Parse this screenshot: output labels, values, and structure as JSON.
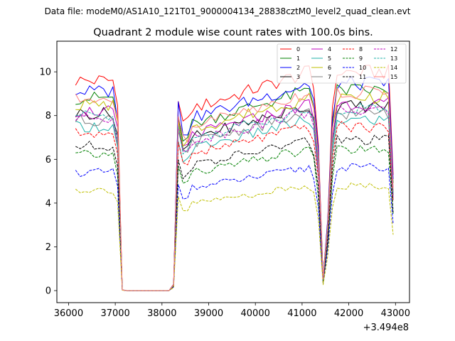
{
  "chart_data": {
    "type": "line",
    "suptitle": "Data file: modeM0/AS1A10_121T01_9000004134_28838cztM0_level2_quad_clean.evt",
    "title": "Quadrant 2 module wise count rates with 100.0s bins.",
    "xlabel": "",
    "ylabel": "",
    "x_offset_label": "+3.494e8",
    "xlim": [
      35750,
      43300
    ],
    "ylim": [
      -0.55,
      11.4
    ],
    "xticks": [
      36000,
      37000,
      38000,
      39000,
      40000,
      41000,
      42000,
      43000
    ],
    "xtick_labels": [
      "36000",
      "37000",
      "38000",
      "39000",
      "40000",
      "41000",
      "42000",
      "43000"
    ],
    "yticks": [
      0,
      2,
      4,
      6,
      8,
      10
    ],
    "ytick_labels": [
      "0",
      "2",
      "4",
      "6",
      "8",
      "10"
    ],
    "grid": false,
    "legend_position": "upper right",
    "legend_columns": 4,
    "x": [
      36150,
      36250,
      36350,
      36450,
      36550,
      36650,
      36750,
      36850,
      36950,
      37050,
      37150,
      37250,
      37350,
      37450,
      37550,
      37650,
      37750,
      37850,
      37950,
      38050,
      38150,
      38250,
      38350,
      38450,
      38550,
      38650,
      38750,
      38850,
      38950,
      39050,
      39150,
      39250,
      39350,
      39450,
      39550,
      39650,
      39750,
      39850,
      39950,
      40050,
      40150,
      40250,
      40350,
      40450,
      40550,
      40650,
      40750,
      40850,
      40950,
      41050,
      41150,
      41250,
      41350,
      41450,
      41550,
      41650,
      41750,
      41850,
      41950,
      42050,
      42150,
      42250,
      42350,
      42450,
      42550,
      42650,
      42750,
      42850,
      42950
    ],
    "series": [
      {
        "name": "0",
        "color": "#ff0000",
        "dash": "solid",
        "level": 9.6
      },
      {
        "name": "1",
        "color": "#008000",
        "dash": "solid",
        "level": 8.8
      },
      {
        "name": "2",
        "color": "#0000ff",
        "dash": "solid",
        "level": 9.1
      },
      {
        "name": "3",
        "color": "#000000",
        "dash": "solid",
        "level": 8.1
      },
      {
        "name": "4",
        "color": "#bf00bf",
        "dash": "solid",
        "level": 8.2
      },
      {
        "name": "5",
        "color": "#20b2aa",
        "dash": "solid",
        "level": 7.5
      },
      {
        "name": "6",
        "color": "#bfbf00",
        "dash": "solid",
        "level": 8.5
      },
      {
        "name": "7",
        "color": "#808080",
        "dash": "solid",
        "level": 7.8
      },
      {
        "name": "8",
        "color": "#ff0000",
        "dash": "dashed",
        "level": 7.2
      },
      {
        "name": "9",
        "color": "#008000",
        "dash": "dashed",
        "level": 6.2
      },
      {
        "name": "10",
        "color": "#0000ff",
        "dash": "dashed",
        "level": 5.4
      },
      {
        "name": "11",
        "color": "#000000",
        "dash": "dashed",
        "level": 6.6
      },
      {
        "name": "12",
        "color": "#bf00bf",
        "dash": "dashed",
        "level": 7.9
      },
      {
        "name": "13",
        "color": "#20b2aa",
        "dash": "dashed",
        "level": 8.0
      },
      {
        "name": "14",
        "color": "#bfbf00",
        "dash": "dashed",
        "level": 4.6
      },
      {
        "name": "15",
        "color": "#ff7f7f",
        "dash": "solid",
        "level": 8.7
      }
    ]
  }
}
